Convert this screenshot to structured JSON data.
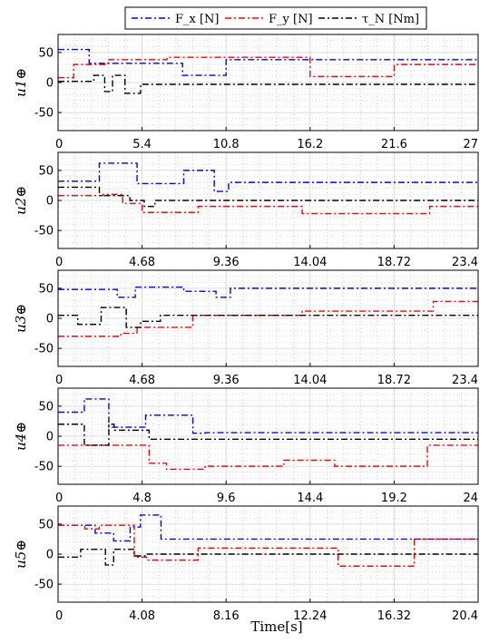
{
  "legend": {
    "items": [
      {
        "label": "F_x [N]",
        "color": "#0000ff"
      },
      {
        "label": "F_y [N]",
        "color": "#ff0000"
      },
      {
        "label": "τ_N [Nm]",
        "color": "#000000"
      }
    ]
  },
  "xlabel": "Time[s]",
  "chart_data": [
    {
      "type": "line",
      "ylabel": "u1⊕",
      "ylim": [
        -80,
        80
      ],
      "yticks": [
        -50,
        0,
        50
      ],
      "xlim": [
        0,
        27
      ],
      "xticks": [
        "0",
        "5.4",
        "10.8",
        "16.2",
        "21.6",
        "27"
      ],
      "series": [
        {
          "name": "F_x [N]",
          "x": [
            0,
            2,
            2,
            8,
            8,
            10.8,
            10.8,
            27
          ],
          "y": [
            55,
            55,
            32,
            32,
            12,
            12,
            38,
            38
          ]
        },
        {
          "name": "F_y [N]",
          "x": [
            0,
            1,
            1,
            3.2,
            3.2,
            7,
            7,
            16.2,
            16.2,
            21.6,
            21.6,
            27
          ],
          "y": [
            8,
            8,
            30,
            30,
            38,
            38,
            42,
            42,
            10,
            10,
            30,
            30
          ]
        },
        {
          "name": "τ_N [Nm]",
          "x": [
            0,
            2.3,
            2.3,
            3,
            3,
            3.5,
            3.5,
            4.3,
            4.3,
            5.3,
            5.3,
            27
          ],
          "y": [
            2,
            2,
            12,
            12,
            -15,
            -15,
            12,
            12,
            -18,
            -18,
            -3,
            -3
          ]
        }
      ]
    },
    {
      "type": "line",
      "ylabel": "u2⊕",
      "ylim": [
        -80,
        80
      ],
      "yticks": [
        -50,
        0,
        50
      ],
      "xlim": [
        0,
        23.4
      ],
      "xticks": [
        "0",
        "4.68",
        "9.36",
        "14.04",
        "18.72",
        "23.4"
      ],
      "series": [
        {
          "name": "F_x [N]",
          "x": [
            0,
            2.3,
            2.3,
            4.4,
            4.4,
            7,
            7,
            8.7,
            8.7,
            9.5,
            9.5,
            23.4
          ],
          "y": [
            32,
            32,
            62,
            62,
            28,
            28,
            50,
            50,
            15,
            15,
            30,
            30
          ]
        },
        {
          "name": "F_y [N]",
          "x": [
            0,
            2.5,
            2.5,
            3.6,
            3.6,
            4.68,
            4.68,
            7.8,
            7.8,
            13.6,
            13.6,
            20.7,
            20.7,
            23.4
          ],
          "y": [
            8,
            8,
            10,
            10,
            -5,
            -5,
            -20,
            -20,
            -10,
            -10,
            -22,
            -22,
            -10,
            -10
          ]
        },
        {
          "name": "τ_N [Nm]",
          "x": [
            0,
            2.3,
            2.3,
            4.0,
            4.0,
            4.8,
            4.8,
            5.4,
            5.4,
            23.4
          ],
          "y": [
            22,
            22,
            8,
            8,
            0,
            0,
            -10,
            -10,
            0,
            0
          ]
        }
      ]
    },
    {
      "type": "line",
      "ylabel": "u3⊕",
      "ylim": [
        -80,
        80
      ],
      "yticks": [
        -50,
        0,
        50
      ],
      "xlim": [
        0,
        23.4
      ],
      "xticks": [
        "0",
        "4.68",
        "9.36",
        "14.04",
        "18.72",
        "23.4"
      ],
      "series": [
        {
          "name": "F_x [N]",
          "x": [
            0,
            3.3,
            3.3,
            4.3,
            4.3,
            7.0,
            7.0,
            8.8,
            8.8,
            9.6,
            9.6,
            23.4
          ],
          "y": [
            48,
            48,
            35,
            35,
            52,
            52,
            45,
            45,
            35,
            35,
            50,
            50
          ]
        },
        {
          "name": "F_y [N]",
          "x": [
            0,
            3.5,
            3.5,
            4.4,
            4.4,
            7.5,
            7.5,
            13.6,
            13.6,
            20.9,
            20.9,
            23.4
          ],
          "y": [
            -30,
            -30,
            -25,
            -25,
            -15,
            -15,
            5,
            5,
            12,
            12,
            28,
            28
          ]
        },
        {
          "name": "τ_N [Nm]",
          "x": [
            0,
            1.1,
            1.1,
            2.4,
            2.4,
            3.8,
            3.8,
            4.6,
            4.6,
            5.7,
            5.7,
            23.4
          ],
          "y": [
            5,
            5,
            -10,
            -10,
            18,
            18,
            -15,
            -15,
            -5,
            -5,
            5,
            5
          ]
        }
      ]
    },
    {
      "type": "line",
      "ylabel": "u4⊕",
      "ylim": [
        -80,
        80
      ],
      "yticks": [
        -50,
        0,
        50
      ],
      "xlim": [
        0,
        24
      ],
      "xticks": [
        "0",
        "4.8",
        "9.6",
        "14.4",
        "19.2",
        "24"
      ],
      "series": [
        {
          "name": "F_x [N]",
          "x": [
            0,
            1.5,
            1.5,
            2.9,
            2.9,
            5.0,
            5.0,
            7.7,
            7.7,
            8.4,
            8.4,
            24
          ],
          "y": [
            40,
            40,
            62,
            62,
            15,
            15,
            35,
            35,
            5,
            5,
            6,
            6
          ]
        },
        {
          "name": "F_y [N]",
          "x": [
            0,
            5.2,
            5.2,
            6.2,
            6.2,
            8.4,
            8.4,
            12.9,
            12.9,
            15.8,
            15.8,
            21.1,
            21.1,
            24
          ],
          "y": [
            -15,
            -15,
            -45,
            -45,
            -55,
            -55,
            -50,
            -50,
            -40,
            -40,
            -50,
            -50,
            -15,
            -15
          ]
        },
        {
          "name": "τ_N [Nm]",
          "x": [
            0,
            1.5,
            1.5,
            2.9,
            2.9,
            3.2,
            3.2,
            5.2,
            5.2,
            24
          ],
          "y": [
            20,
            20,
            -15,
            -15,
            20,
            20,
            10,
            10,
            -5,
            -5
          ]
        }
      ]
    },
    {
      "type": "line",
      "ylabel": "u5⊕",
      "ylim": [
        -80,
        80
      ],
      "yticks": [
        -50,
        0,
        50
      ],
      "xlim": [
        0,
        20.4
      ],
      "xticks": [
        "0",
        "4.08",
        "8.16",
        "12.24",
        "16.32",
        "20.4"
      ],
      "series": [
        {
          "name": "F_x [N]",
          "x": [
            0,
            1.8,
            1.8,
            2.7,
            2.7,
            3.5,
            3.5,
            4.0,
            4.0,
            5.0,
            5.0,
            20.4
          ],
          "y": [
            48,
            48,
            35,
            35,
            22,
            22,
            45,
            45,
            65,
            65,
            25,
            25
          ]
        },
        {
          "name": "F_y [N]",
          "x": [
            0,
            1.3,
            1.3,
            2.0,
            2.0,
            3.7,
            3.7,
            4.3,
            4.3,
            6.8,
            6.8,
            13.6,
            13.6,
            17.3,
            17.3,
            20.4
          ],
          "y": [
            48,
            48,
            42,
            42,
            48,
            48,
            -5,
            -5,
            -10,
            -10,
            10,
            10,
            -20,
            -20,
            25,
            25
          ]
        },
        {
          "name": "τ_N [Nm]",
          "x": [
            0,
            1.1,
            1.1,
            2.3,
            2.3,
            2.7,
            2.7,
            3.7,
            3.7,
            4.3,
            4.3,
            20.4
          ],
          "y": [
            -5,
            -5,
            8,
            8,
            -18,
            -18,
            8,
            8,
            -3,
            -3,
            0,
            0
          ]
        }
      ]
    }
  ]
}
